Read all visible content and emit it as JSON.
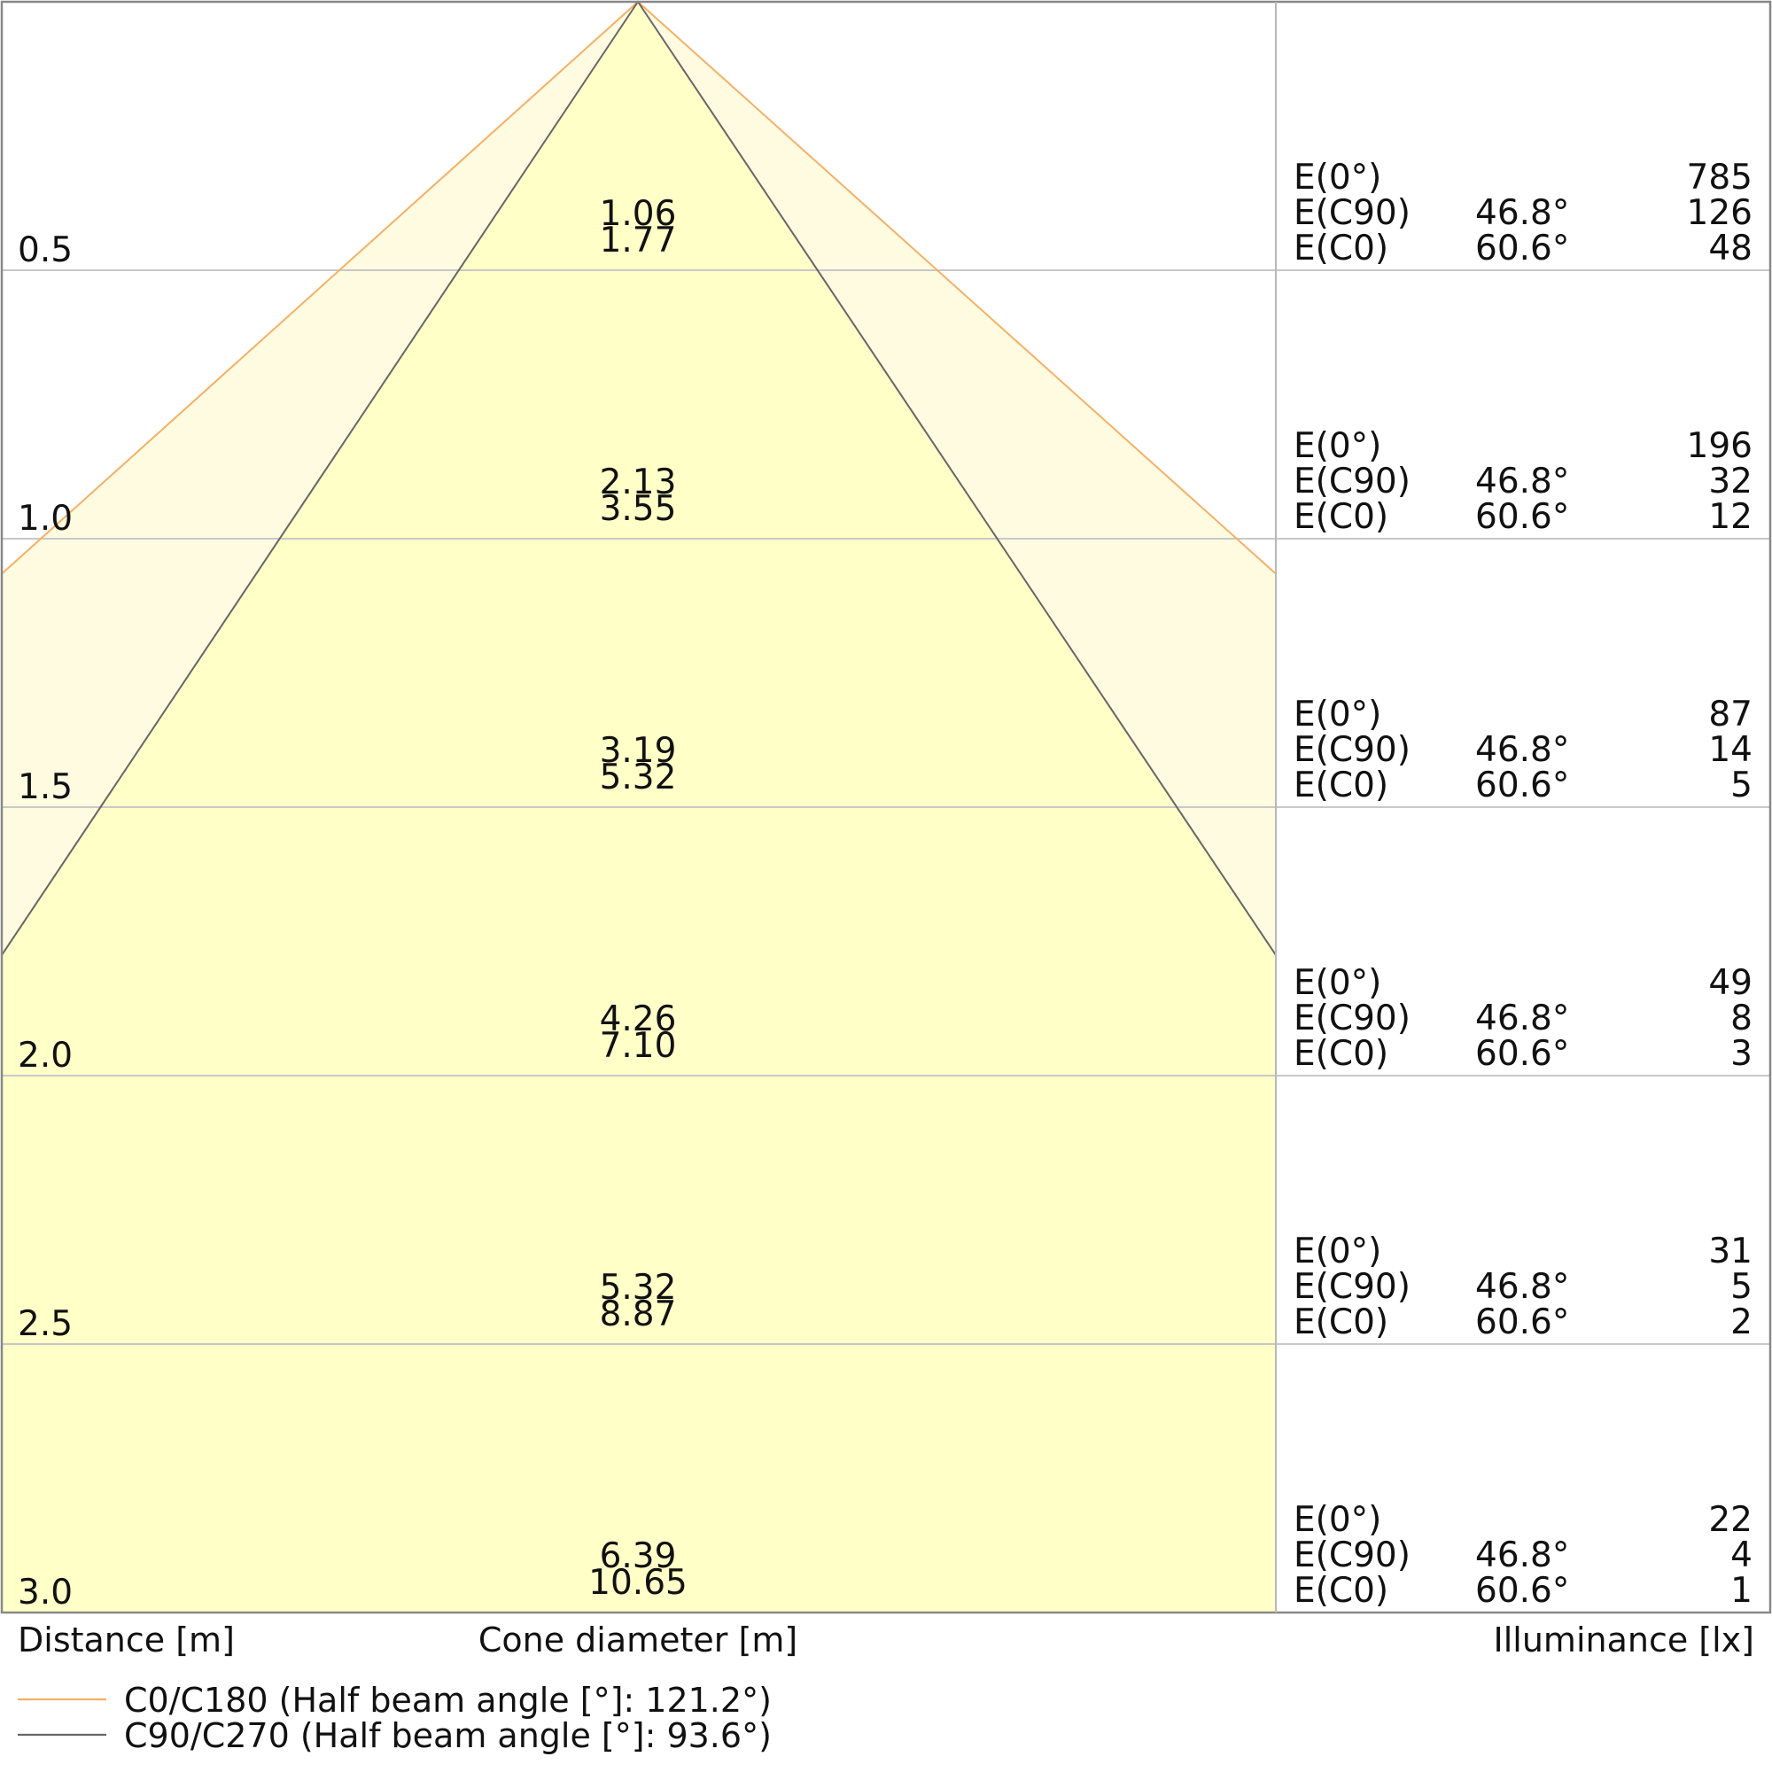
{
  "chart_data": {
    "type": "area",
    "title": "",
    "xlabel": "Cone diameter [m]",
    "ylabel": "Distance [m]",
    "illuminance_label": "Illuminance [lx]",
    "distances": [
      "0.5",
      "1.0",
      "1.5",
      "2.0",
      "2.5",
      "3.0"
    ],
    "cone_diameters": [
      {
        "c90": "1.06",
        "c0": "1.77"
      },
      {
        "c90": "2.13",
        "c0": "3.55"
      },
      {
        "c90": "3.19",
        "c0": "5.32"
      },
      {
        "c90": "4.26",
        "c0": "7.10"
      },
      {
        "c90": "5.32",
        "c0": "8.87"
      },
      {
        "c90": "6.39",
        "c0": "10.65"
      }
    ],
    "illuminance": [
      {
        "e0": "785",
        "ec90": "126",
        "ec0": "48"
      },
      {
        "e0": "196",
        "ec90": "32",
        "ec0": "12"
      },
      {
        "e0": "87",
        "ec90": "14",
        "ec0": "5"
      },
      {
        "e0": "49",
        "ec90": "8",
        "ec0": "3"
      },
      {
        "e0": "31",
        "ec90": "5",
        "ec0": "2"
      },
      {
        "e0": "22",
        "ec90": "4",
        "ec0": "1"
      }
    ],
    "row_labels": {
      "e0": "E(0°)",
      "ec90": "E(C90)",
      "ec0": "E(C0)"
    },
    "angles": {
      "c90": "46.8°",
      "c0": "60.6°"
    },
    "series": [
      {
        "name": "C0/C180 (Half beam angle [°]: 121.2°)",
        "half_beam_angle": 121.2,
        "color": "#f5b066",
        "fill": "#fffbe0"
      },
      {
        "name": "C90/C270 (Half beam angle [°]: 93.6°)",
        "half_beam_angle": 93.6,
        "color": "#666666",
        "fill": "#ffffc8"
      }
    ],
    "ylim": [
      0,
      3.0
    ],
    "grid": true
  }
}
